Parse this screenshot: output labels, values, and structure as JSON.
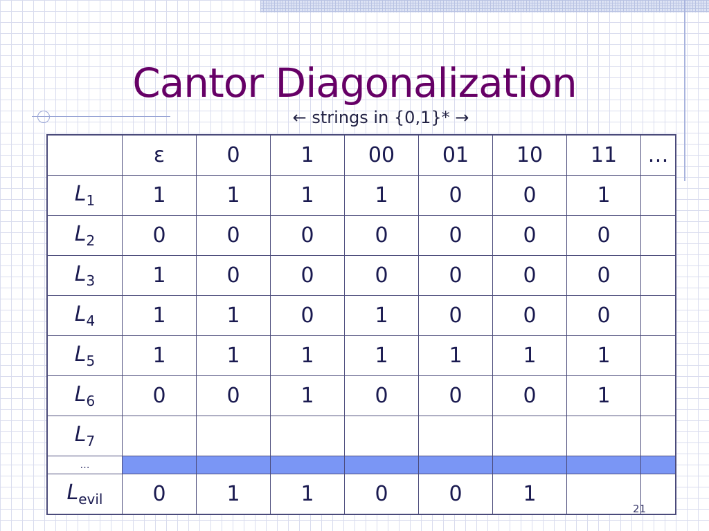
{
  "slide": {
    "title": "Cantor Diagonalization",
    "subtitle": "← strings in {0,1}* →",
    "page_number": "21"
  },
  "table": {
    "header": [
      "ε",
      "0",
      "1",
      "00",
      "01",
      "10",
      "11",
      "…"
    ],
    "rows": [
      {
        "label": "L",
        "sub": "1",
        "cells": [
          "1",
          "1",
          "1",
          "1",
          "0",
          "0",
          "1",
          ""
        ],
        "diag": 0
      },
      {
        "label": "L",
        "sub": "2",
        "cells": [
          "0",
          "0",
          "0",
          "0",
          "0",
          "0",
          "0",
          ""
        ],
        "diag": 1
      },
      {
        "label": "L",
        "sub": "3",
        "cells": [
          "1",
          "0",
          "0",
          "0",
          "0",
          "0",
          "0",
          ""
        ],
        "diag": 2
      },
      {
        "label": "L",
        "sub": "4",
        "cells": [
          "1",
          "1",
          "0",
          "1",
          "0",
          "0",
          "0",
          ""
        ],
        "diag": 3
      },
      {
        "label": "L",
        "sub": "5",
        "cells": [
          "1",
          "1",
          "1",
          "1",
          "1",
          "1",
          "1",
          ""
        ],
        "diag": 4
      },
      {
        "label": "L",
        "sub": "6",
        "cells": [
          "0",
          "0",
          "1",
          "0",
          "0",
          "0",
          "1",
          ""
        ],
        "diag": 5
      },
      {
        "label": "L",
        "sub": "7",
        "cells": [
          "",
          "",
          "",
          "",
          "",
          "",
          "",
          ""
        ],
        "diag": 6
      }
    ],
    "gap_label": "…",
    "evil_row": {
      "label": "L",
      "sub": "evil",
      "cells": [
        "0",
        "1",
        "1",
        "0",
        "0",
        "1",
        "",
        ""
      ]
    }
  },
  "colors": {
    "title": "#660066",
    "header_fill": "#f0dc88",
    "diagonal_fill": "#b3b3b3",
    "gap_fill": "#7a96f5"
  }
}
